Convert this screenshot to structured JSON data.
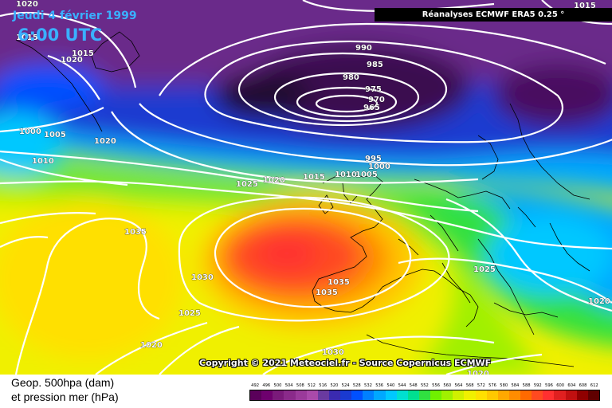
{
  "header": {
    "date": "Jeudi 4 février 1999",
    "time": "6:00 UTC",
    "source": "Réanalyses ECMWF ERA5 0.25 °"
  },
  "copyright": "Copyright © 2021 Meteociel.fr - Source Copernicus ECMWF",
  "legend": {
    "title_line1": "Geop. 500hpa (dam)",
    "title_line2": "et pression mer (hPa)",
    "scale_values": [
      "492",
      "496",
      "500",
      "504",
      "508",
      "512",
      "516",
      "520",
      "524",
      "528",
      "532",
      "536",
      "540",
      "544",
      "548",
      "552",
      "556",
      "560",
      "564",
      "568",
      "572",
      "576",
      "580",
      "584",
      "588",
      "592",
      "596",
      "600",
      "604",
      "608",
      "612"
    ],
    "scale_colors": [
      "#5a005a",
      "#6e006e",
      "#7a1a7a",
      "#8a2a8a",
      "#9a3a9a",
      "#aa4aaa",
      "#6a3aa0",
      "#3a2ab0",
      "#1a3ad0",
      "#0050ff",
      "#0080ff",
      "#00a8ff",
      "#00c8ff",
      "#00e0d0",
      "#00e090",
      "#30e040",
      "#70f000",
      "#a0f000",
      "#d0f000",
      "#f0f000",
      "#ffe000",
      "#ffc800",
      "#ffa800",
      "#ff8c00",
      "#ff6a00",
      "#ff4a20",
      "#ff3030",
      "#e02020",
      "#c01010",
      "#900000",
      "#600000"
    ]
  },
  "isobar_labels": [
    {
      "text": "1020"
    },
    {
      "text": "1015"
    },
    {
      "text": "1015"
    },
    {
      "text": "1020"
    },
    {
      "text": "1000"
    },
    {
      "text": "1005"
    },
    {
      "text": "1010"
    },
    {
      "text": "1020"
    },
    {
      "text": "990"
    },
    {
      "text": "985"
    },
    {
      "text": "980"
    },
    {
      "text": "975"
    },
    {
      "text": "970"
    },
    {
      "text": "965"
    },
    {
      "text": "995"
    },
    {
      "text": "1000"
    },
    {
      "text": "1010"
    },
    {
      "text": "1005"
    },
    {
      "text": "1015"
    },
    {
      "text": "1020"
    },
    {
      "text": "1025"
    },
    {
      "text": "1035"
    },
    {
      "text": "1030"
    },
    {
      "text": "1035"
    },
    {
      "text": "1035"
    },
    {
      "text": "1025"
    },
    {
      "text": "1025"
    },
    {
      "text": "1020"
    },
    {
      "text": "1030"
    },
    {
      "text": "1020"
    },
    {
      "text": "1020"
    },
    {
      "text": "1015"
    }
  ]
}
